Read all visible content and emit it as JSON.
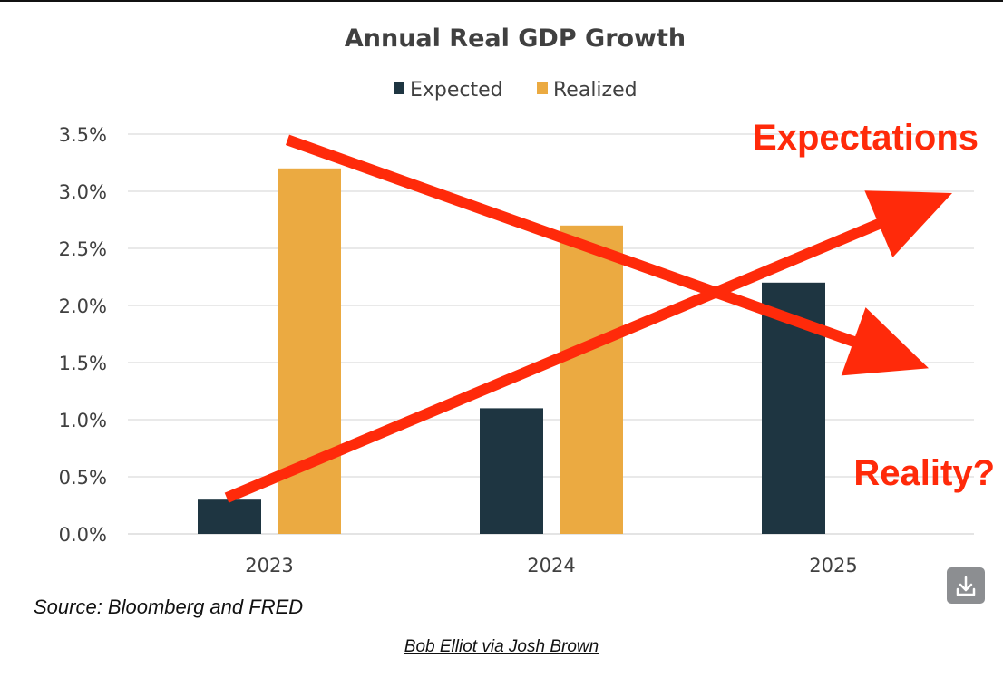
{
  "chart_data": {
    "type": "bar",
    "title": "Annual Real GDP Growth",
    "categories": [
      "2023",
      "2024",
      "2025"
    ],
    "series": [
      {
        "name": "Expected",
        "values": [
          0.3,
          1.1,
          2.2
        ],
        "color": "#1e3541"
      },
      {
        "name": "Realized",
        "values": [
          3.2,
          2.7,
          null
        ],
        "color": "#ebaa41"
      }
    ],
    "ylim": [
      0,
      3.5
    ],
    "yticks": [
      "0.0%",
      "0.5%",
      "1.0%",
      "1.5%",
      "2.0%",
      "2.5%",
      "3.0%",
      "3.5%"
    ],
    "ytick_values": [
      0,
      0.5,
      1.0,
      1.5,
      2.0,
      2.5,
      3.0,
      3.5
    ],
    "grid": true,
    "legend_position": "top",
    "annotations": [
      {
        "text": "Expectations",
        "color": "#ff2a0a"
      },
      {
        "text": "Reality?",
        "color": "#ff2a0a"
      }
    ],
    "arrows": {
      "falling": {
        "from": [
          "2023",
          3.45
        ],
        "to": [
          "2025",
          1.45
        ]
      },
      "rising": {
        "from": [
          "2023",
          0.3
        ],
        "to": [
          "2025",
          3.0
        ]
      }
    }
  },
  "source": "Source: Bloomberg and FRED",
  "credit": "Bob Elliot via Josh Brown",
  "download_icon": "download-icon"
}
